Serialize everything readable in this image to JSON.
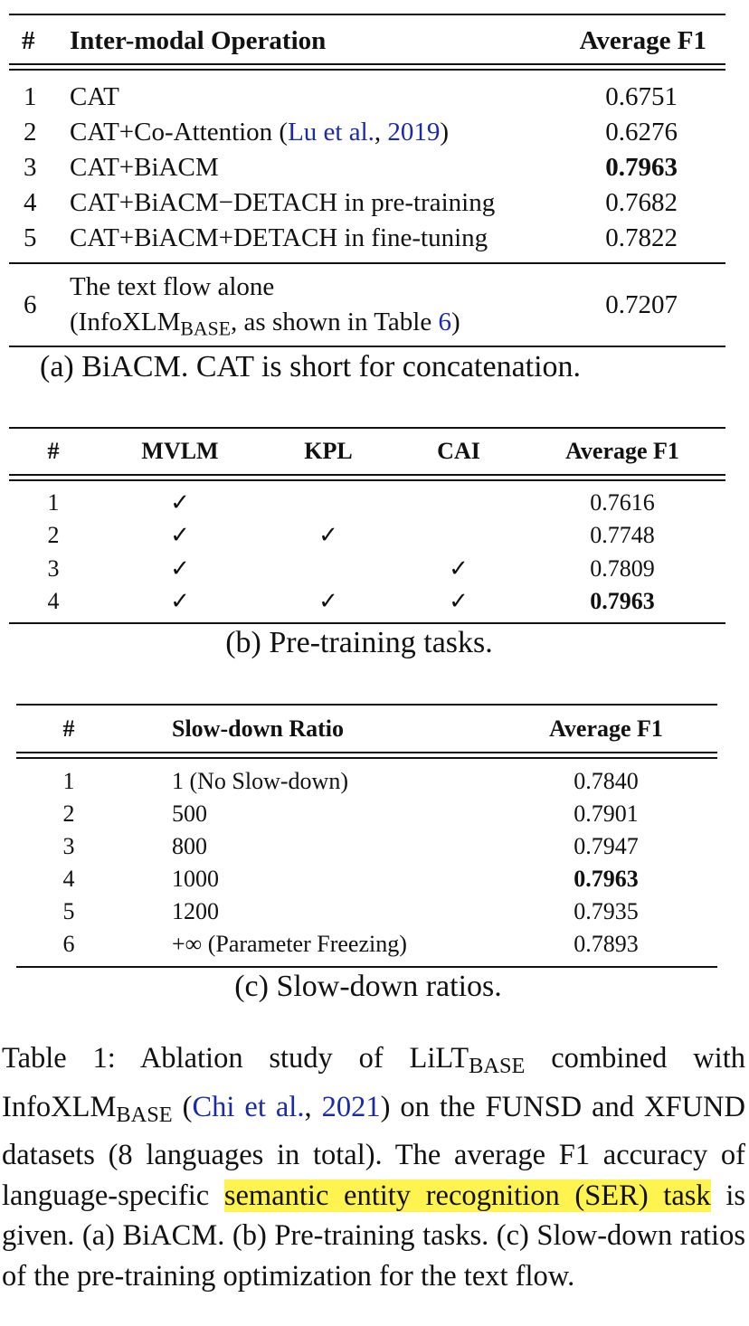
{
  "table_a": {
    "headers": [
      "#",
      "Inter-modal Operation",
      "Average F1"
    ],
    "rows": [
      {
        "num": "1",
        "op": "CAT",
        "f1": "0.6751"
      },
      {
        "num": "2",
        "op_pre": "CAT+Co-Attention (",
        "op_link1": "Lu et al.",
        "op_mid": ", ",
        "op_link2": "2019",
        "op_post": ")",
        "f1": "0.6276"
      },
      {
        "num": "3",
        "op": "CAT+BiACM",
        "f1": "0.7963",
        "best": true
      },
      {
        "num": "4",
        "op": "CAT+BiACM−DETACH in pre-training",
        "f1": "0.7682"
      },
      {
        "num": "5",
        "op": "CAT+BiACM+DETACH in fine-tuning",
        "f1": "0.7822"
      }
    ],
    "extra_row": {
      "num": "6",
      "line1": "The text flow alone",
      "line2_pre": "(InfoXLM",
      "line2_sub": "BASE",
      "line2_mid": ", as shown in Table ",
      "line2_link": "6",
      "line2_post": ")",
      "f1": "0.7207"
    },
    "caption": "(a) BiACM. CAT is short for concatenation."
  },
  "table_b": {
    "headers": [
      "#",
      "MVLM",
      "KPL",
      "CAI",
      "Average F1"
    ],
    "check": "✓",
    "rows": [
      {
        "num": "1",
        "mvlm": true,
        "kpl": false,
        "cai": false,
        "f1": "0.7616"
      },
      {
        "num": "2",
        "mvlm": true,
        "kpl": true,
        "cai": false,
        "f1": "0.7748"
      },
      {
        "num": "3",
        "mvlm": true,
        "kpl": false,
        "cai": true,
        "f1": "0.7809"
      },
      {
        "num": "4",
        "mvlm": true,
        "kpl": true,
        "cai": true,
        "f1": "0.7963",
        "best": true
      }
    ],
    "caption": "(b) Pre-training tasks."
  },
  "table_c": {
    "headers": [
      "#",
      "Slow-down Ratio",
      "Average F1"
    ],
    "rows": [
      {
        "num": "1",
        "ratio": "1 (No Slow-down)",
        "f1": "0.7840"
      },
      {
        "num": "2",
        "ratio": "500",
        "f1": "0.7901"
      },
      {
        "num": "3",
        "ratio": "800",
        "f1": "0.7947"
      },
      {
        "num": "4",
        "ratio": "1000",
        "f1": "0.7963",
        "best": true
      },
      {
        "num": "5",
        "ratio": "1200",
        "f1": "0.7935"
      },
      {
        "num": "6",
        "ratio": "+∞ (Parameter Freezing)",
        "f1": "0.7893"
      }
    ],
    "caption": "(c) Slow-down ratios."
  },
  "caption": {
    "p1": "Table 1: Ablation study of LiLT",
    "sub1": "BASE",
    "p2": " combined with InfoXLM",
    "sub2": "BASE",
    "p3": " (",
    "link1": "Chi et al.",
    "p4": ", ",
    "link2": "2021",
    "p5": ") on the FUNSD and XFUND datasets (8 languages in total). The average F1 accuracy of language-specific ",
    "highlight": "semantic entity recognition (SER) task",
    "p6": " is given. (a) BiACM. (b) Pre-training tasks. (c) Slow-down ratios of the pre-training optimization for the text flow."
  }
}
